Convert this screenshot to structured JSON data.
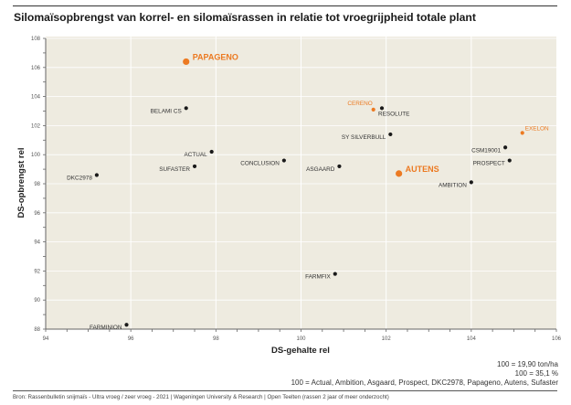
{
  "chart_data": {
    "type": "scatter",
    "title": "Silomaïsopbrengst van korrel- en silomaïsrassen in relatie tot vroegrijpheid totale plant",
    "xlabel": "DS-gehalte rel",
    "ylabel": "DS-opbrengst rel",
    "xlim": [
      94,
      106
    ],
    "ylim": [
      88,
      108
    ],
    "xticks": [
      94,
      96,
      98,
      100,
      102,
      104,
      106
    ],
    "yticks": [
      88,
      90,
      92,
      94,
      96,
      98,
      100,
      102,
      104,
      106,
      108
    ],
    "grid": true,
    "colors": {
      "default": "#1a1a1a",
      "highlight": "#ec7a22",
      "background": "#eeebe0"
    },
    "points": [
      {
        "name": "PAPAGENO",
        "x": 97.3,
        "y": 106.4,
        "style": "highlight-bold",
        "label_pos": "right"
      },
      {
        "name": "BELAMI CS",
        "x": 97.3,
        "y": 103.2,
        "style": "default",
        "label_pos": "left"
      },
      {
        "name": "ACTUAL",
        "x": 97.9,
        "y": 100.2,
        "style": "default",
        "label_pos": "left"
      },
      {
        "name": "SUFASTER",
        "x": 97.5,
        "y": 99.2,
        "style": "default",
        "label_pos": "left"
      },
      {
        "name": "DKC2978",
        "x": 95.2,
        "y": 98.6,
        "style": "default",
        "label_pos": "left"
      },
      {
        "name": "CONCLUSION",
        "x": 99.6,
        "y": 99.6,
        "style": "default",
        "label_pos": "left"
      },
      {
        "name": "ASGAARD",
        "x": 100.9,
        "y": 99.2,
        "style": "default",
        "label_pos": "left"
      },
      {
        "name": "CERENO",
        "x": 101.7,
        "y": 103.1,
        "style": "highlight",
        "label_pos": "top-left"
      },
      {
        "name": "RESOLUTE",
        "x": 101.9,
        "y": 103.2,
        "style": "default",
        "label_pos": "bottom-right"
      },
      {
        "name": "SY SILVERBULL",
        "x": 102.1,
        "y": 101.4,
        "style": "default",
        "label_pos": "left"
      },
      {
        "name": "AUTENS",
        "x": 102.3,
        "y": 98.7,
        "style": "highlight-bold",
        "label_pos": "right"
      },
      {
        "name": "EXELON",
        "x": 105.2,
        "y": 101.5,
        "style": "highlight",
        "label_pos": "top-right"
      },
      {
        "name": "CSM19001",
        "x": 104.8,
        "y": 100.5,
        "style": "default",
        "label_pos": "left"
      },
      {
        "name": "PROSPECT",
        "x": 104.9,
        "y": 99.6,
        "style": "default",
        "label_pos": "left"
      },
      {
        "name": "AMBITION",
        "x": 104.0,
        "y": 98.1,
        "style": "default",
        "label_pos": "left"
      },
      {
        "name": "FARMFIX",
        "x": 100.8,
        "y": 91.8,
        "style": "default",
        "label_pos": "left"
      },
      {
        "name": "FARMINION",
        "x": 95.9,
        "y": 88.3,
        "style": "default",
        "label_pos": "left"
      }
    ]
  },
  "notes": [
    "100 = 19,90 ton/ha",
    "100 = 35,1 %",
    "100 = Actual, Ambition, Asgaard, Prospect, DKC2978, Papageno, Autens, Sufaster"
  ],
  "source": "Bron: Rassenbulletin snijmaïs - Ultra vroeg / zeer vroeg - 2021 | Wageningen University & Research | Open Teelten (rassen 2 jaar of meer onderzocht)"
}
